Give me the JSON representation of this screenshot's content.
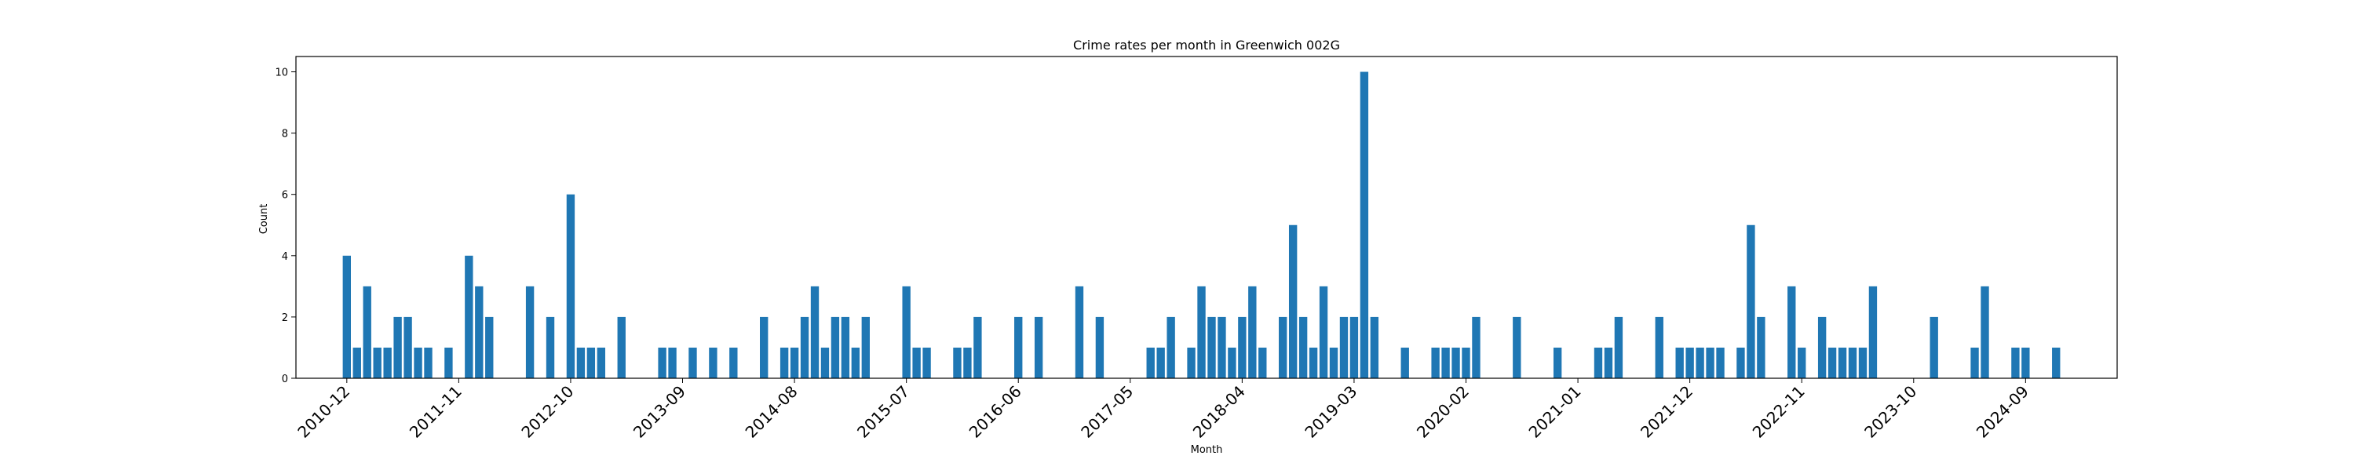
{
  "chart_data": {
    "type": "bar",
    "title": "Crime rates per month in Greenwich 002G",
    "xlabel": "Month",
    "ylabel": "Count",
    "ylim": [
      0,
      10.5
    ],
    "yticks": [
      0,
      2,
      4,
      6,
      8,
      10
    ],
    "xlim": [
      "2010-07",
      "2025-06"
    ],
    "xticks": [
      "2010-12",
      "2011-11",
      "2012-10",
      "2013-09",
      "2014-08",
      "2015-07",
      "2016-06",
      "2017-05",
      "2018-04",
      "2019-03",
      "2020-02",
      "2021-01",
      "2021-12",
      "2022-11",
      "2023-10",
      "2024-09"
    ],
    "bar_color": "#1f77b4",
    "grid": false,
    "legend": "none",
    "series": [
      {
        "x": [
          "2010-12",
          "2011-01",
          "2011-02",
          "2011-03",
          "2011-04",
          "2011-05",
          "2011-06",
          "2011-07",
          "2011-08",
          "2011-10",
          "2011-12",
          "2012-01",
          "2012-02",
          "2012-06",
          "2012-08",
          "2012-10",
          "2012-11",
          "2012-12",
          "2013-01",
          "2013-03",
          "2013-07",
          "2013-08",
          "2013-10",
          "2013-12",
          "2014-02",
          "2014-05",
          "2014-07",
          "2014-08",
          "2014-09",
          "2014-10",
          "2014-11",
          "2014-12",
          "2015-01",
          "2015-02",
          "2015-03",
          "2015-07",
          "2015-08",
          "2015-09",
          "2015-12",
          "2016-01",
          "2016-02",
          "2016-06",
          "2016-08",
          "2016-12",
          "2017-02",
          "2017-07",
          "2017-08",
          "2017-09",
          "2017-11",
          "2017-12",
          "2018-01",
          "2018-02",
          "2018-03",
          "2018-04",
          "2018-05",
          "2018-06",
          "2018-08",
          "2018-09",
          "2018-10",
          "2018-11",
          "2018-12",
          "2019-01",
          "2019-02",
          "2019-03",
          "2019-04",
          "2019-05",
          "2019-08",
          "2019-11",
          "2019-12",
          "2020-01",
          "2020-02",
          "2020-03",
          "2020-07",
          "2020-11",
          "2021-03",
          "2021-04",
          "2021-05",
          "2021-09",
          "2021-11",
          "2021-12",
          "2022-01",
          "2022-02",
          "2022-03",
          "2022-05",
          "2022-06",
          "2022-07",
          "2022-10",
          "2022-11",
          "2023-01",
          "2023-02",
          "2023-03",
          "2023-04",
          "2023-05",
          "2023-06",
          "2023-12",
          "2024-04",
          "2024-05",
          "2024-08",
          "2024-09",
          "2024-12"
        ],
        "values": [
          4,
          1,
          3,
          1,
          1,
          2,
          2,
          1,
          1,
          1,
          4,
          3,
          2,
          3,
          2,
          6,
          1,
          1,
          1,
          2,
          1,
          1,
          1,
          1,
          1,
          2,
          1,
          1,
          2,
          3,
          1,
          2,
          2,
          1,
          2,
          3,
          1,
          1,
          1,
          1,
          2,
          2,
          2,
          3,
          2,
          1,
          1,
          2,
          1,
          3,
          2,
          2,
          1,
          2,
          3,
          1,
          2,
          5,
          2,
          1,
          3,
          1,
          2,
          2,
          10,
          2,
          1,
          1,
          1,
          1,
          1,
          2,
          2,
          1,
          1,
          1,
          2,
          2,
          1,
          1,
          1,
          1,
          1,
          1,
          5,
          2,
          3,
          1,
          2,
          1,
          1,
          1,
          1,
          3,
          2,
          1,
          3,
          1,
          1,
          1
        ]
      }
    ]
  }
}
